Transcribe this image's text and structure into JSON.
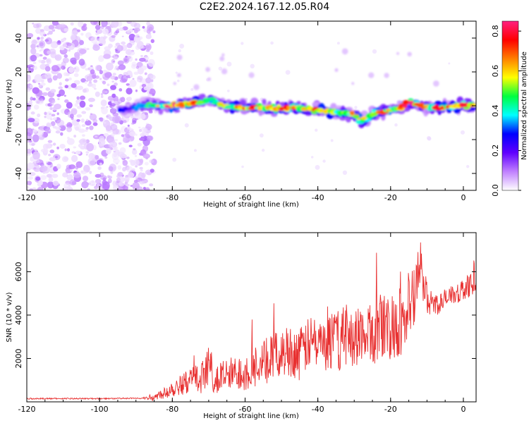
{
  "title": "C2E2.2024.167.12.05.R04",
  "chart_data": [
    {
      "type": "heatmap",
      "xlabel": "Height of straight line (km)",
      "ylabel": "Frequency (Hz)",
      "xlim": [
        -120,
        3.5
      ],
      "ylim": [
        -50,
        50
      ],
      "xticks": [
        -120,
        -100,
        -80,
        -60,
        -40,
        -20,
        0
      ],
      "yticks": [
        -40,
        -20,
        0,
        20,
        40
      ],
      "colorbar": {
        "label": "Normalized spectral amplitude",
        "range": [
          0,
          0.85
        ],
        "ticks": [
          0,
          0.2,
          0.4,
          0.6,
          0.8
        ],
        "colors": [
          "#ffffff",
          "#c080ff",
          "#6000ff",
          "#0000ff",
          "#00ffff",
          "#00ff40",
          "#ffff00",
          "#ff8000",
          "#ff0000",
          "#ff2080"
        ]
      },
      "noise_region": {
        "x": [
          -120,
          -85
        ],
        "freq": [
          -50,
          50
        ],
        "amplitude": [
          0.02,
          0.12
        ]
      },
      "ridge": [
        {
          "x": -92,
          "freq": -2,
          "amp": 0.18
        },
        {
          "x": -88,
          "freq": 0,
          "amp": 0.3
        },
        {
          "x": -84,
          "freq": 0,
          "amp": 0.45
        },
        {
          "x": -80,
          "freq": 0,
          "amp": 0.8
        },
        {
          "x": -76,
          "freq": 1,
          "amp": 0.7
        },
        {
          "x": -72,
          "freq": 2,
          "amp": 0.6
        },
        {
          "x": -70,
          "freq": 4,
          "amp": 0.4
        },
        {
          "x": -66,
          "freq": 0,
          "amp": 0.5
        },
        {
          "x": -62,
          "freq": -1,
          "amp": 0.55
        },
        {
          "x": -58,
          "freq": -1,
          "amp": 0.6
        },
        {
          "x": -54,
          "freq": -1,
          "amp": 0.55
        },
        {
          "x": -50,
          "freq": -2,
          "amp": 0.75
        },
        {
          "x": -46,
          "freq": -1,
          "amp": 0.55
        },
        {
          "x": -42,
          "freq": -2,
          "amp": 0.6
        },
        {
          "x": -38,
          "freq": -3,
          "amp": 0.65
        },
        {
          "x": -34,
          "freq": -4,
          "amp": 0.5
        },
        {
          "x": -30,
          "freq": -5,
          "amp": 0.55
        },
        {
          "x": -28,
          "freq": -9,
          "amp": 0.45
        },
        {
          "x": -24,
          "freq": -4,
          "amp": 0.65
        },
        {
          "x": -20,
          "freq": -3,
          "amp": 0.5
        },
        {
          "x": -17,
          "freq": -1,
          "amp": 0.55
        },
        {
          "x": -15,
          "freq": 2,
          "amp": 0.75
        },
        {
          "x": -12,
          "freq": 0,
          "amp": 0.6
        },
        {
          "x": -9,
          "freq": -1,
          "amp": 0.55
        },
        {
          "x": -6,
          "freq": -1,
          "amp": 0.65
        },
        {
          "x": -3,
          "freq": 0,
          "amp": 0.6
        },
        {
          "x": 0,
          "freq": 0,
          "amp": 0.85
        },
        {
          "x": 2,
          "freq": 0,
          "amp": 0.7
        }
      ]
    },
    {
      "type": "line",
      "xlabel": "Height of straight line (km)",
      "ylabel": "SNR (10 * v/v)",
      "xlim": [
        -120,
        3.5
      ],
      "ylim": [
        0,
        7800
      ],
      "xticks": [
        -120,
        -100,
        -80,
        -60,
        -40,
        -20,
        0
      ],
      "yticks": [
        2000,
        4000,
        6000
      ],
      "series": [
        {
          "color": "#e83030",
          "x": [
            -120,
            -110,
            -100,
            -90,
            -85,
            -82,
            -78,
            -75,
            -72,
            -70,
            -68,
            -65,
            -62,
            -60,
            -58,
            -55,
            -52,
            -50,
            -48,
            -45,
            -43,
            -41,
            -39,
            -37,
            -35,
            -33,
            -31,
            -29,
            -27,
            -25,
            -23,
            -21,
            -19,
            -17,
            -15,
            -13,
            -12,
            -11,
            -10,
            -9,
            -7,
            -5,
            -3,
            -1,
            1,
            3.5
          ],
          "y": [
            150,
            150,
            150,
            160,
            200,
            450,
            800,
            1000,
            1100,
            1700,
            1000,
            1200,
            1300,
            1400,
            1600,
            1800,
            2100,
            2200,
            2400,
            2200,
            2600,
            2800,
            2500,
            2700,
            2900,
            2800,
            3000,
            3100,
            2900,
            3200,
            3500,
            3300,
            3600,
            3800,
            4200,
            4800,
            6500,
            5500,
            4800,
            4600,
            4500,
            4700,
            4900,
            5100,
            5300,
            5500
          ],
          "band": [
            0,
            0,
            0,
            0,
            150,
            300,
            500,
            600,
            700,
            900,
            800,
            800,
            900,
            900,
            1000,
            1000,
            1100,
            1100,
            1200,
            1200,
            1200,
            1300,
            1300,
            1300,
            1400,
            1400,
            1400,
            1500,
            1500,
            1500,
            1600,
            1600,
            1700,
            1700,
            1800,
            1500,
            1300,
            1000,
            700,
            600,
            500,
            500,
            500,
            500,
            500,
            500
          ]
        }
      ]
    }
  ]
}
